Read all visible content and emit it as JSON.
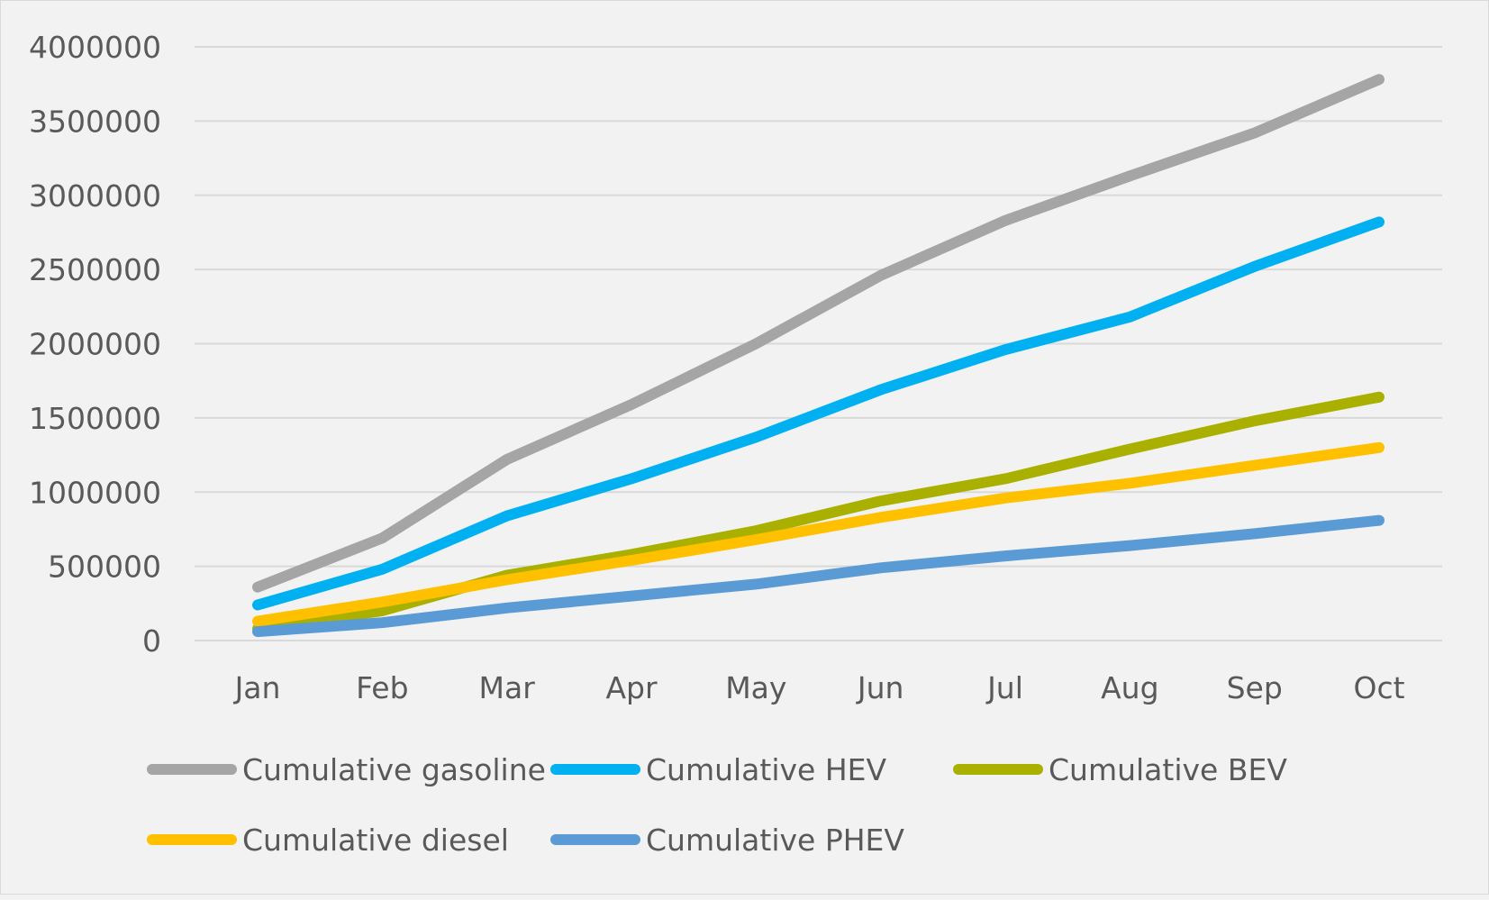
{
  "chart_data": {
    "type": "line",
    "title": "",
    "xlabel": "",
    "ylabel": "",
    "categories": [
      "Jan",
      "Feb",
      "Mar",
      "Apr",
      "May",
      "Jun",
      "Jul",
      "Aug",
      "Sep",
      "Oct"
    ],
    "y_ticks": [
      "0",
      "500000",
      "1000000",
      "1500000",
      "2000000",
      "2500000",
      "3000000",
      "3500000",
      "4000000"
    ],
    "ylim": [
      0,
      4000000
    ],
    "grid": true,
    "legend_position": "bottom",
    "series": [
      {
        "name": "Cumulative gasoline",
        "color": "#a5a5a5",
        "values": [
          360000,
          690000,
          1220000,
          1590000,
          2000000,
          2460000,
          2830000,
          3130000,
          3420000,
          3780000
        ]
      },
      {
        "name": "Cumulative HEV",
        "color": "#00b0f0",
        "values": [
          240000,
          480000,
          840000,
          1090000,
          1370000,
          1690000,
          1960000,
          2180000,
          2520000,
          2820000
        ]
      },
      {
        "name": "Cumulative BEV",
        "color": "#a9b000",
        "values": [
          80000,
          200000,
          440000,
          580000,
          740000,
          940000,
          1090000,
          1290000,
          1480000,
          1640000
        ]
      },
      {
        "name": "Cumulative diesel",
        "color": "#ffc000",
        "values": [
          130000,
          260000,
          410000,
          540000,
          680000,
          830000,
          960000,
          1060000,
          1180000,
          1300000
        ]
      },
      {
        "name": "Cumulative PHEV",
        "color": "#5b9bd5",
        "values": [
          60000,
          120000,
          220000,
          300000,
          380000,
          490000,
          570000,
          640000,
          720000,
          810000
        ]
      }
    ]
  }
}
